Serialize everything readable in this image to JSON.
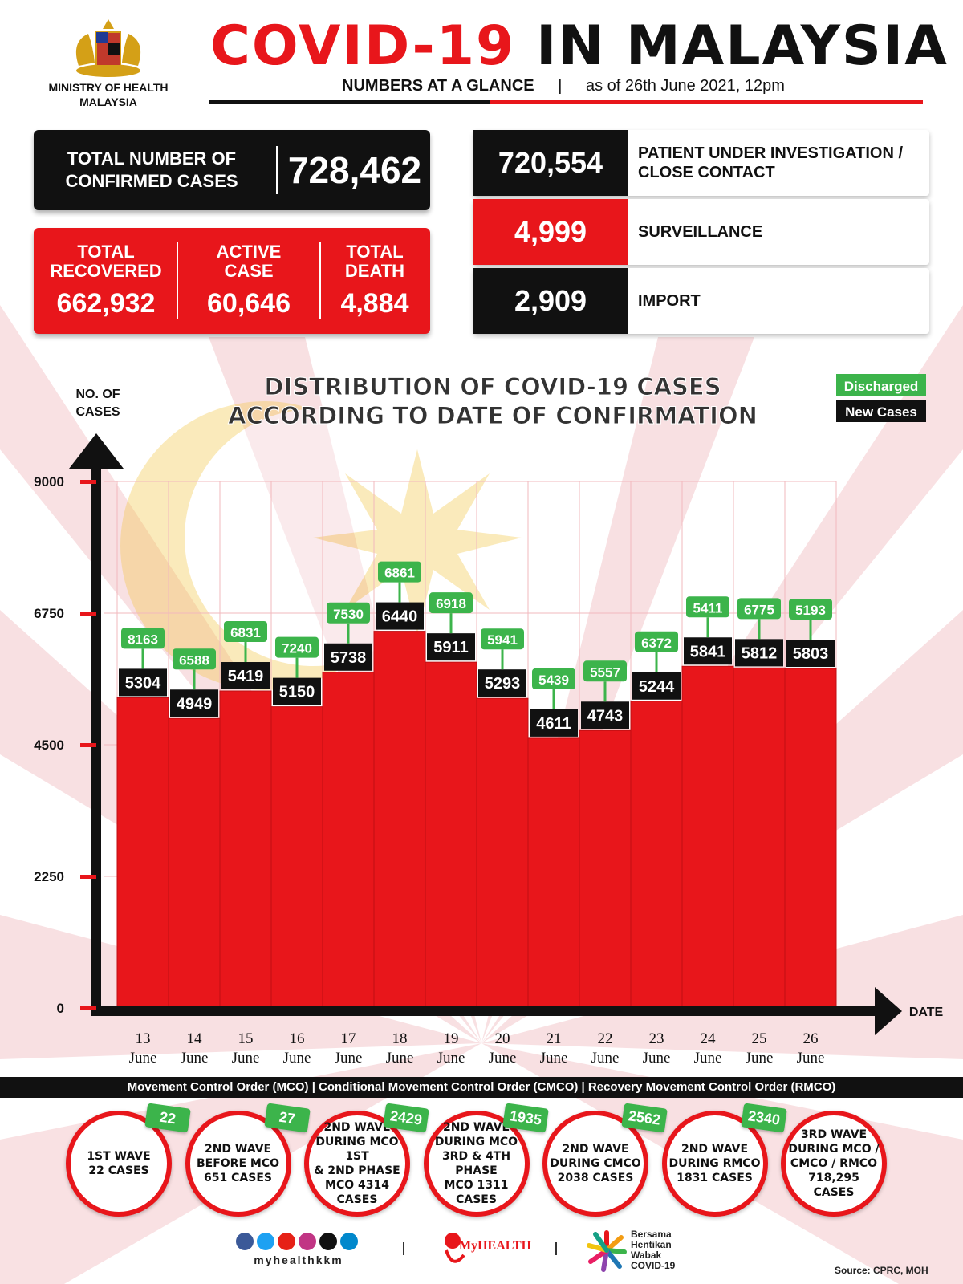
{
  "header": {
    "ministry": "MINISTRY OF HEALTH\nMALAYSIA",
    "title_red": "COVID-19",
    "title_black": "IN MALAYSIA",
    "subtitle_bold": "NUMBERS AT A GLANCE",
    "subtitle_separator": "|",
    "subtitle_date": "as of 26th June 2021, 12pm"
  },
  "stats": {
    "confirmed_label": "TOTAL NUMBER OF\nCONFIRMED CASES",
    "confirmed_value": "728,462",
    "recovered_label": "TOTAL\nRECOVERED",
    "recovered_value": "662,932",
    "active_label": "ACTIVE\nCASE",
    "active_value": "60,646",
    "death_label": "TOTAL\nDEATH",
    "death_value": "4,884"
  },
  "categories": [
    {
      "value": "720,554",
      "label": "PATIENT UNDER INVESTIGATION /\nCLOSE CONTACT",
      "color": "#111111"
    },
    {
      "value": "4,999",
      "label": "SURVEILLANCE",
      "color": "#e8161b"
    },
    {
      "value": "2,909",
      "label": "IMPORT",
      "color": "#111111"
    }
  ],
  "chart_data": {
    "type": "bar",
    "title": "DISTRIBUTION OF COVID-19 CASES\nACCORDING TO DATE OF CONFIRMATION",
    "ylabel": "NO. OF\nCASES",
    "xlabel": "DATE",
    "ylim": [
      0,
      9000
    ],
    "yticks": [
      0,
      2250,
      4500,
      6750,
      9000
    ],
    "categories": [
      "13\nJune",
      "14\nJune",
      "15\nJune",
      "16\nJune",
      "17\nJune",
      "18\nJune",
      "19\nJune",
      "20\nJune",
      "21\nJune",
      "22\nJune",
      "23\nJune",
      "24\nJune",
      "25\nJune",
      "26\nJune"
    ],
    "series": [
      {
        "name": "New Cases",
        "values": [
          5304,
          4949,
          5419,
          5150,
          5738,
          6440,
          5911,
          5293,
          4611,
          4743,
          5244,
          5841,
          5812,
          5803
        ]
      },
      {
        "name": "Discharged",
        "values": [
          8163,
          6588,
          6831,
          7240,
          7530,
          6861,
          6918,
          5941,
          5439,
          5557,
          6372,
          5411,
          6775,
          5193
        ]
      }
    ],
    "legend_position": "top-right",
    "colors": {
      "bar": "#e8161b",
      "new_label": "#111111",
      "discharged": "#3cb44b"
    }
  },
  "order_strip": "Movement Control Order (MCO) | Conditional Movement Control Order (CMCO) | Recovery Movement Control Order (RMCO)",
  "waves": [
    {
      "text": "1ST WAVE\n22 CASES",
      "badge": "22"
    },
    {
      "text": "2ND WAVE\nBEFORE MCO\n651 CASES",
      "badge": "27"
    },
    {
      "text": "2ND WAVE\nDURING MCO 1ST\n& 2ND PHASE\nMCO 4314\nCASES",
      "badge": "2429"
    },
    {
      "text": "2ND WAVE\nDURING MCO\n3RD & 4TH PHASE\nMCO 1311\nCASES",
      "badge": "1935"
    },
    {
      "text": "2ND WAVE\nDURING CMCO\n2038 CASES",
      "badge": "2562"
    },
    {
      "text": "2ND WAVE\nDURING RMCO\n1831 CASES",
      "badge": "2340"
    },
    {
      "text": "3RD WAVE\nDURING MCO /\nCMCO / RMCO\n718,295\nCASES",
      "badge": ""
    }
  ],
  "footer": {
    "social_handle": "myhealthkkm",
    "myhealth": "MyHEALTH",
    "bersama": "Bersama\nHentikan\nWabak\nCOVID-19",
    "source": "Source: CPRC, MOH"
  }
}
